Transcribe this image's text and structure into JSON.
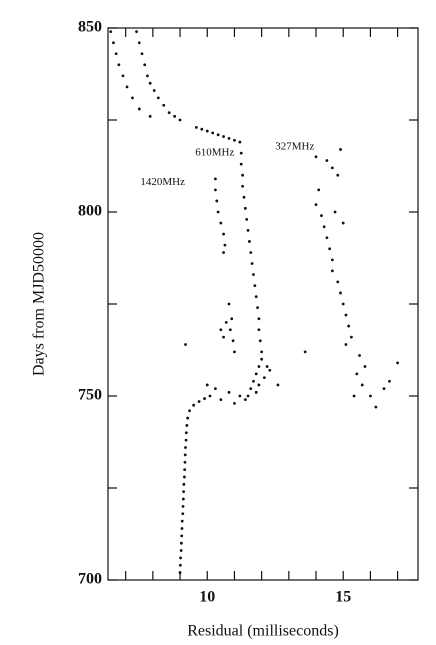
{
  "chart_data": {
    "type": "scatter",
    "x_label": "Residual  (milliseconds)",
    "y_label": "Days from MJD50000",
    "xlim": [
      6.35,
      17.75
    ],
    "ylim": [
      700,
      850
    ],
    "xticks": [
      10,
      15
    ],
    "yticks": [
      700,
      750,
      800,
      850
    ],
    "xminor_ticks": [
      7,
      8,
      9,
      11,
      12,
      13,
      14,
      16,
      17
    ],
    "yminor_ticks": [
      725,
      775,
      825
    ],
    "color": "#111111",
    "annotations": [
      {
        "text": "610MHz",
        "x": 9.56,
        "y": 816
      },
      {
        "text": "1420MHz",
        "x": 7.54,
        "y": 808
      },
      {
        "text": "327MHz",
        "x": 12.5,
        "y": 817.7
      }
    ],
    "x": [
      9.0,
      9.01,
      9.02,
      9.04,
      9.05,
      9.06,
      9.07,
      9.08,
      9.1,
      9.11,
      9.12,
      9.13,
      9.14,
      9.16,
      9.17,
      9.18,
      9.19,
      9.2,
      9.22,
      9.23,
      9.25,
      9.28,
      9.35,
      9.5,
      9.7,
      9.9,
      10.1,
      11.5,
      11.6,
      11.7,
      11.8,
      11.9,
      12.0,
      12.0,
      11.95,
      11.9,
      11.9,
      11.85,
      11.8,
      11.75,
      11.7,
      11.65,
      11.6,
      11.55,
      11.5,
      11.45,
      11.4,
      11.35,
      11.3,
      11.3,
      11.25,
      11.25,
      11.2,
      11.8,
      12.1,
      12.2,
      11.4,
      12.3,
      11.9,
      9.6,
      9.8,
      10.0,
      10.2,
      10.4,
      10.6,
      10.8,
      11.0,
      7.4,
      7.5,
      7.6,
      7.7,
      7.8,
      7.9,
      8.05,
      8.2,
      8.4,
      8.6,
      8.8,
      9.0,
      6.45,
      6.55,
      6.65,
      6.75,
      6.9,
      7.05,
      7.25,
      7.5,
      7.9,
      10.3,
      10.3,
      10.35,
      10.4,
      10.5,
      10.6,
      10.65,
      10.6,
      10.8,
      10.9,
      10.85,
      10.95,
      11.0,
      10.7,
      10.5,
      10.6,
      10.5,
      10.8,
      11.0,
      10.3,
      11.2,
      12.6,
      10.0,
      9.2,
      13.6,
      14.0,
      14.4,
      14.6,
      14.8,
      14.1,
      14.0,
      14.2,
      14.3,
      14.4,
      14.5,
      14.6,
      14.6,
      14.8,
      14.9,
      15.0,
      15.1,
      15.2,
      15.3,
      15.1,
      15.6,
      15.8,
      15.5,
      15.7,
      16.0,
      16.2,
      16.5,
      16.7,
      17.0,
      15.4,
      14.9,
      15.0,
      14.7
    ],
    "values": [
      702,
      704,
      706,
      708,
      710,
      712,
      714,
      716,
      718,
      720,
      722,
      724,
      726,
      728,
      730,
      732,
      734,
      736,
      738,
      740,
      742,
      744,
      746,
      747.5,
      748.5,
      749.3,
      750,
      750,
      752,
      754,
      756,
      758,
      760,
      762,
      765,
      768,
      771,
      774,
      777,
      780,
      783,
      786,
      789,
      792,
      795,
      798,
      801,
      804,
      807,
      810,
      813,
      816,
      819,
      751,
      755,
      758,
      749,
      757,
      753,
      823,
      822.5,
      822,
      821.5,
      821,
      820.5,
      820,
      819.5,
      849,
      846,
      843,
      840,
      837,
      835,
      833,
      831,
      829,
      827,
      826,
      825,
      849,
      846,
      843,
      840,
      837,
      834,
      831,
      828,
      826,
      809,
      806,
      803,
      800,
      797,
      794,
      791,
      789,
      775,
      771,
      768,
      765,
      762,
      770,
      768,
      766,
      749,
      751,
      748,
      752,
      750,
      753,
      753,
      764,
      762,
      815,
      814,
      812,
      810,
      806,
      802,
      799,
      796,
      793,
      790,
      787,
      784,
      781,
      778,
      775,
      772,
      769,
      766,
      764,
      761,
      758,
      756,
      753,
      750,
      747,
      752,
      754,
      759,
      750,
      817,
      797,
      800
    ]
  }
}
